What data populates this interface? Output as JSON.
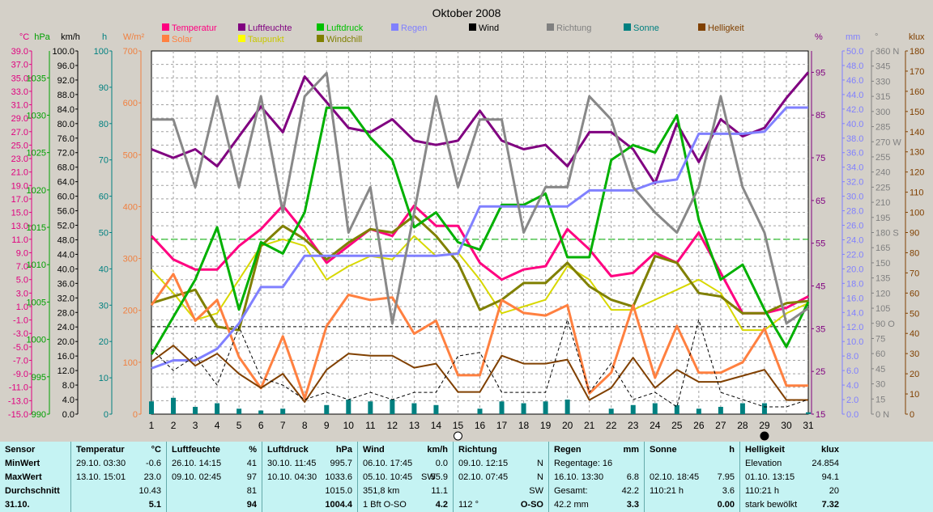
{
  "chart_data": {
    "type": "line",
    "title": "Oktober 2008",
    "x": [
      1,
      2,
      3,
      4,
      5,
      6,
      7,
      8,
      9,
      10,
      11,
      12,
      13,
      14,
      15,
      16,
      17,
      18,
      19,
      20,
      21,
      22,
      23,
      24,
      25,
      26,
      27,
      28,
      29,
      30,
      31
    ],
    "left_axes": [
      {
        "unit": "°C",
        "color": "#e0007f",
        "ticks": [
          "39.0",
          "37.0",
          "35.0",
          "33.0",
          "31.0",
          "29.0",
          "27.0",
          "25.0",
          "23.0",
          "21.0",
          "19.0",
          "17.0",
          "15.0",
          "13.0",
          "11.0",
          "9.0",
          "7.0",
          "5.0",
          "3.0",
          "1.0",
          "-1.0",
          "-3.0",
          "-5.0",
          "-7.0",
          "-9.0",
          "-11.0",
          "-13.0",
          "-15.0"
        ],
        "range": [
          -15,
          39
        ]
      },
      {
        "unit": "hPa",
        "color": "#00a000",
        "ticks": [
          "1035",
          "1030",
          "1025",
          "1020",
          "1015",
          "1010",
          "1005",
          "1000",
          "995",
          "990"
        ],
        "range": [
          990,
          1038.6
        ]
      },
      {
        "unit": "km/h",
        "color": "#000000",
        "ticks": [
          "100.0",
          "96.0",
          "92.0",
          "88.0",
          "84.0",
          "80.0",
          "76.0",
          "72.0",
          "68.0",
          "64.0",
          "60.0",
          "56.0",
          "52.0",
          "48.0",
          "44.0",
          "40.0",
          "36.0",
          "32.0",
          "28.0",
          "24.0",
          "20.0",
          "16.0",
          "12.0",
          "8.0",
          "4.0",
          "0.0"
        ],
        "range": [
          0,
          100
        ]
      },
      {
        "unit": "h",
        "color": "#008080",
        "ticks": [
          "100",
          "90",
          "80",
          "70",
          "60",
          "50",
          "40",
          "30",
          "20",
          "10",
          "0"
        ],
        "range": [
          0,
          100
        ]
      },
      {
        "unit": "W/m²",
        "color": "#f08040",
        "ticks": [
          "700",
          "600",
          "500",
          "400",
          "300",
          "200",
          "100",
          "0"
        ],
        "range": [
          0,
          700
        ]
      }
    ],
    "right_axes": [
      {
        "unit": "%",
        "color": "#800080",
        "ticks": [
          "95",
          "85",
          "75",
          "65",
          "55",
          "45",
          "35",
          "25",
          "15"
        ],
        "range": [
          15,
          100
        ]
      },
      {
        "unit": "mm",
        "color": "#8080ff",
        "ticks": [
          "50.0",
          "48.0",
          "46.0",
          "44.0",
          "42.0",
          "40.0",
          "38.0",
          "36.0",
          "34.0",
          "32.0",
          "30.0",
          "28.0",
          "26.0",
          "24.0",
          "22.0",
          "20.0",
          "18.0",
          "16.0",
          "14.0",
          "12.0",
          "10.0",
          "8.0",
          "6.0",
          "4.0",
          "2.0",
          "0.0"
        ],
        "range": [
          0,
          50
        ]
      },
      {
        "unit": "°",
        "color": "#808080",
        "ticks": [
          "360 N",
          "345",
          "330",
          "315",
          "300",
          "285",
          "270 W",
          "255",
          "240",
          "225",
          "210",
          "195",
          "180 S",
          "165",
          "150",
          "135",
          "120",
          "105",
          "90 O",
          "75",
          "60",
          "45",
          "30",
          "15",
          "0 N"
        ],
        "range": [
          0,
          360
        ]
      },
      {
        "unit": "klux",
        "color": "#804000",
        "ticks": [
          "180",
          "170",
          "160",
          "150",
          "140",
          "130",
          "120",
          "110",
          "100",
          "90",
          "80",
          "70",
          "60",
          "50",
          "40",
          "30",
          "20",
          "10",
          "0"
        ],
        "range": [
          0,
          180
        ]
      }
    ],
    "legend": [
      {
        "name": "Temperatur",
        "color": "#ff0080"
      },
      {
        "name": "Solar",
        "color": "#ff8040"
      },
      {
        "name": "Luftfeuchte",
        "color": "#800080"
      },
      {
        "name": "Taupunkt",
        "color": "#ffff00"
      },
      {
        "name": "Luftdruck",
        "color": "#00c000"
      },
      {
        "name": "Windchill",
        "color": "#808000"
      },
      {
        "name": "Regen",
        "color": "#8080ff"
      },
      {
        "name": "Wind",
        "color": "#000000"
      },
      {
        "name": "Richtung",
        "color": "#808080"
      },
      {
        "name": "Sonne",
        "color": "#008080"
      },
      {
        "name": "Helligkeit",
        "color": "#804000"
      }
    ],
    "series": [
      {
        "name": "Temperatur",
        "axis": "°C",
        "color": "#ff0080",
        "width": 3,
        "values": [
          11.5,
          8.0,
          6.5,
          6.5,
          10.0,
          12.5,
          16.0,
          12.0,
          7.5,
          10.0,
          12.5,
          11.5,
          16.0,
          13.0,
          13.0,
          7.5,
          5.0,
          6.5,
          7.0,
          12.5,
          9.5,
          5.5,
          6.0,
          9.0,
          7.5,
          12.0,
          6.0,
          0.0,
          0.0,
          0.8,
          2.5
        ]
      },
      {
        "name": "Taupunkt",
        "axis": "°C",
        "color": "#d8d800",
        "width": 2,
        "values": [
          6.5,
          3.0,
          -1.0,
          0.0,
          5.0,
          10.0,
          11.0,
          10.0,
          5.0,
          7.0,
          8.5,
          8.0,
          11.5,
          8.5,
          9.0,
          5.0,
          0.0,
          1.0,
          2.0,
          7.0,
          5.0,
          0.5,
          0.5,
          2.0,
          3.5,
          5.0,
          3.0,
          -2.5,
          -2.5,
          0.0,
          1.5
        ]
      },
      {
        "name": "Windchill",
        "axis": "°C",
        "color": "#808000",
        "width": 3,
        "values": [
          1.5,
          2.5,
          3.5,
          -2.0,
          -2.5,
          10.0,
          13.0,
          11.0,
          8.0,
          10.5,
          12.5,
          12.0,
          14.5,
          11.5,
          7.5,
          0.5,
          2.0,
          4.5,
          4.5,
          7.5,
          4.0,
          2.0,
          1.0,
          8.5,
          7.5,
          3.0,
          2.5,
          0.0,
          0.0,
          1.5,
          1.8
        ]
      },
      {
        "name": "Solar",
        "axis": "W/m²",
        "color": "#ff8040",
        "width": 3,
        "values": [
          210,
          270,
          180,
          220,
          110,
          50,
          150,
          30,
          170,
          230,
          220,
          225,
          155,
          180,
          75,
          75,
          220,
          195,
          190,
          210,
          40,
          80,
          210,
          70,
          170,
          80,
          80,
          100,
          165,
          55,
          55
        ]
      },
      {
        "name": "Luftfeuchte",
        "axis": "%",
        "color": "#800080",
        "width": 3,
        "values": [
          77,
          75,
          77,
          73,
          80,
          87,
          81,
          94,
          88,
          82,
          81,
          84,
          79,
          78,
          79,
          86,
          79,
          77,
          78,
          73,
          81,
          81,
          77,
          69,
          83,
          74,
          84,
          80,
          82,
          89,
          95
        ]
      },
      {
        "name": "Luftdruck",
        "axis": "hPa",
        "color": "#00b000",
        "width": 3,
        "values": [
          998,
          1003,
          1008,
          1015,
          1004,
          1013,
          1011.5,
          1017,
          1031,
          1031,
          1027,
          1024,
          1015,
          1017,
          1013,
          1012,
          1018,
          1018,
          1019.5,
          1011,
          1011,
          1024,
          1026,
          1025,
          1030,
          1016,
          1008,
          1010,
          1004,
          999,
          1005
        ]
      },
      {
        "name": "Regen",
        "axis": "mm",
        "color": "#8080ff",
        "width": 3,
        "values": [
          6.3,
          7.4,
          7.4,
          9.0,
          12.5,
          17.5,
          17.5,
          21.8,
          21.8,
          21.8,
          21.8,
          21.8,
          21.8,
          21.8,
          22.1,
          28.6,
          28.6,
          28.6,
          28.6,
          28.6,
          30.8,
          30.8,
          30.8,
          31.9,
          32.3,
          38.6,
          38.6,
          38.6,
          38.9,
          42.2,
          42.2
        ]
      },
      {
        "name": "Richtung",
        "axis": "°",
        "color": "#888888",
        "width": 3,
        "values": [
          292,
          292,
          225,
          315,
          225,
          315,
          200,
          315,
          338,
          180,
          225,
          90,
          200,
          315,
          225,
          292,
          292,
          180,
          225,
          225,
          315,
          292,
          225,
          200,
          180,
          225,
          315,
          225,
          180,
          90,
          105
        ]
      },
      {
        "name": "Helligkeit",
        "axis": "klux",
        "color": "#804000",
        "width": 2,
        "values": [
          26,
          34,
          24,
          30,
          20,
          13,
          20,
          6,
          22,
          30,
          29,
          29,
          23,
          25,
          11,
          11,
          29,
          25,
          25,
          27,
          7,
          13,
          28,
          13,
          22,
          16,
          16,
          19,
          22,
          7,
          7
        ]
      },
      {
        "name": "Wind",
        "axis": "km/h",
        "color": "#000000",
        "width": 1,
        "dash": "4,3",
        "values": [
          18,
          12,
          16,
          8,
          24,
          10,
          8,
          4,
          6,
          4,
          6,
          4,
          6,
          6,
          16,
          17,
          6,
          6,
          6,
          26,
          6,
          14,
          4,
          6,
          2,
          26,
          6,
          4,
          2,
          2,
          4
        ]
      }
    ],
    "sonne_bars": [
      7,
      9,
      4,
      6,
      3,
      2,
      3,
      0,
      5,
      8,
      7,
      8,
      6,
      5,
      0,
      3,
      7,
      6,
      7,
      8,
      0,
      3,
      5,
      6,
      5,
      3,
      4,
      6,
      6,
      0,
      1
    ],
    "reference_lines": [
      {
        "axis": "°C",
        "value": 11.0,
        "color": "#00b000",
        "dash": "8,4"
      },
      {
        "axis": "°C",
        "value": -2.0,
        "color": "#000000",
        "dash": "4,3"
      }
    ],
    "moon_markers": [
      {
        "day": 15,
        "phase": "full"
      },
      {
        "day": 29,
        "phase": "new"
      }
    ]
  },
  "stats": {
    "sensor": {
      "header": "Sensor",
      "rows": [
        "MinWert",
        "MaxWert",
        "Durchschnitt",
        "31.10."
      ]
    },
    "temperatur": {
      "header": "Temperatur",
      "unit": "°C",
      "min_time": "29.10.  03:30",
      "min": "-0.6",
      "max_time": "13.10.  15:01",
      "max": "23.0",
      "avg": "10.43",
      "today": "5.1"
    },
    "luftfeuchte": {
      "header": "Luftfeuchte",
      "unit": "%",
      "min_time": "26.10.  14:15",
      "min": "41",
      "max_time": "09.10.  02:45",
      "max": "97",
      "avg": "81",
      "today": "94"
    },
    "luftdruck": {
      "header": "Luftdruck",
      "unit": "hPa",
      "min_time": "30.10.  11:45",
      "min": "995.7",
      "max_time": "10.10.  04:30",
      "max": "1033.6",
      "avg": "1015.0",
      "today": "1004.4"
    },
    "wind": {
      "header": "Wind",
      "unit": "km/h",
      "min_time": "06.10.  17:45",
      "min": "0.0",
      "max_time": "05.10.  10:45",
      "max_dir": "SW",
      "max": "55.9",
      "avg_label": "351,8 km",
      "avg": "11.1",
      "today_label": "1 Bft O-SO",
      "today": "4.2"
    },
    "richtung": {
      "header": "Richtung",
      "min_time": "09.10.  12:15",
      "min": "N",
      "max_time": "02.10.  07:45",
      "max": "N",
      "avg": "SW",
      "today_deg": "112 °",
      "today": "O-SO"
    },
    "regen": {
      "header": "Regen",
      "unit": "mm",
      "row1": "Regentage: 16",
      "max_time": "16.10.  13:30",
      "max": "6.8",
      "gesamt_label": "Gesamt:",
      "gesamt": "42.2",
      "today_label": "42.2 mm",
      "today": "3.3"
    },
    "sonne": {
      "header": "Sonne",
      "unit": "h",
      "max_time": "02.10.  18:45",
      "max": "7.95",
      "avg_label": "110:21 h",
      "avg": "3.6",
      "today": "0.00"
    },
    "helligkeit": {
      "header": "Helligkeit",
      "unit": "klux",
      "row1_label": "Elevation",
      "row1": "24.854",
      "max_time": "01.10.  13:15",
      "max": "94.1",
      "avg_label": "110:21 h",
      "avg": "20",
      "today_label": "stark bewölkt",
      "today": "7.32"
    }
  }
}
